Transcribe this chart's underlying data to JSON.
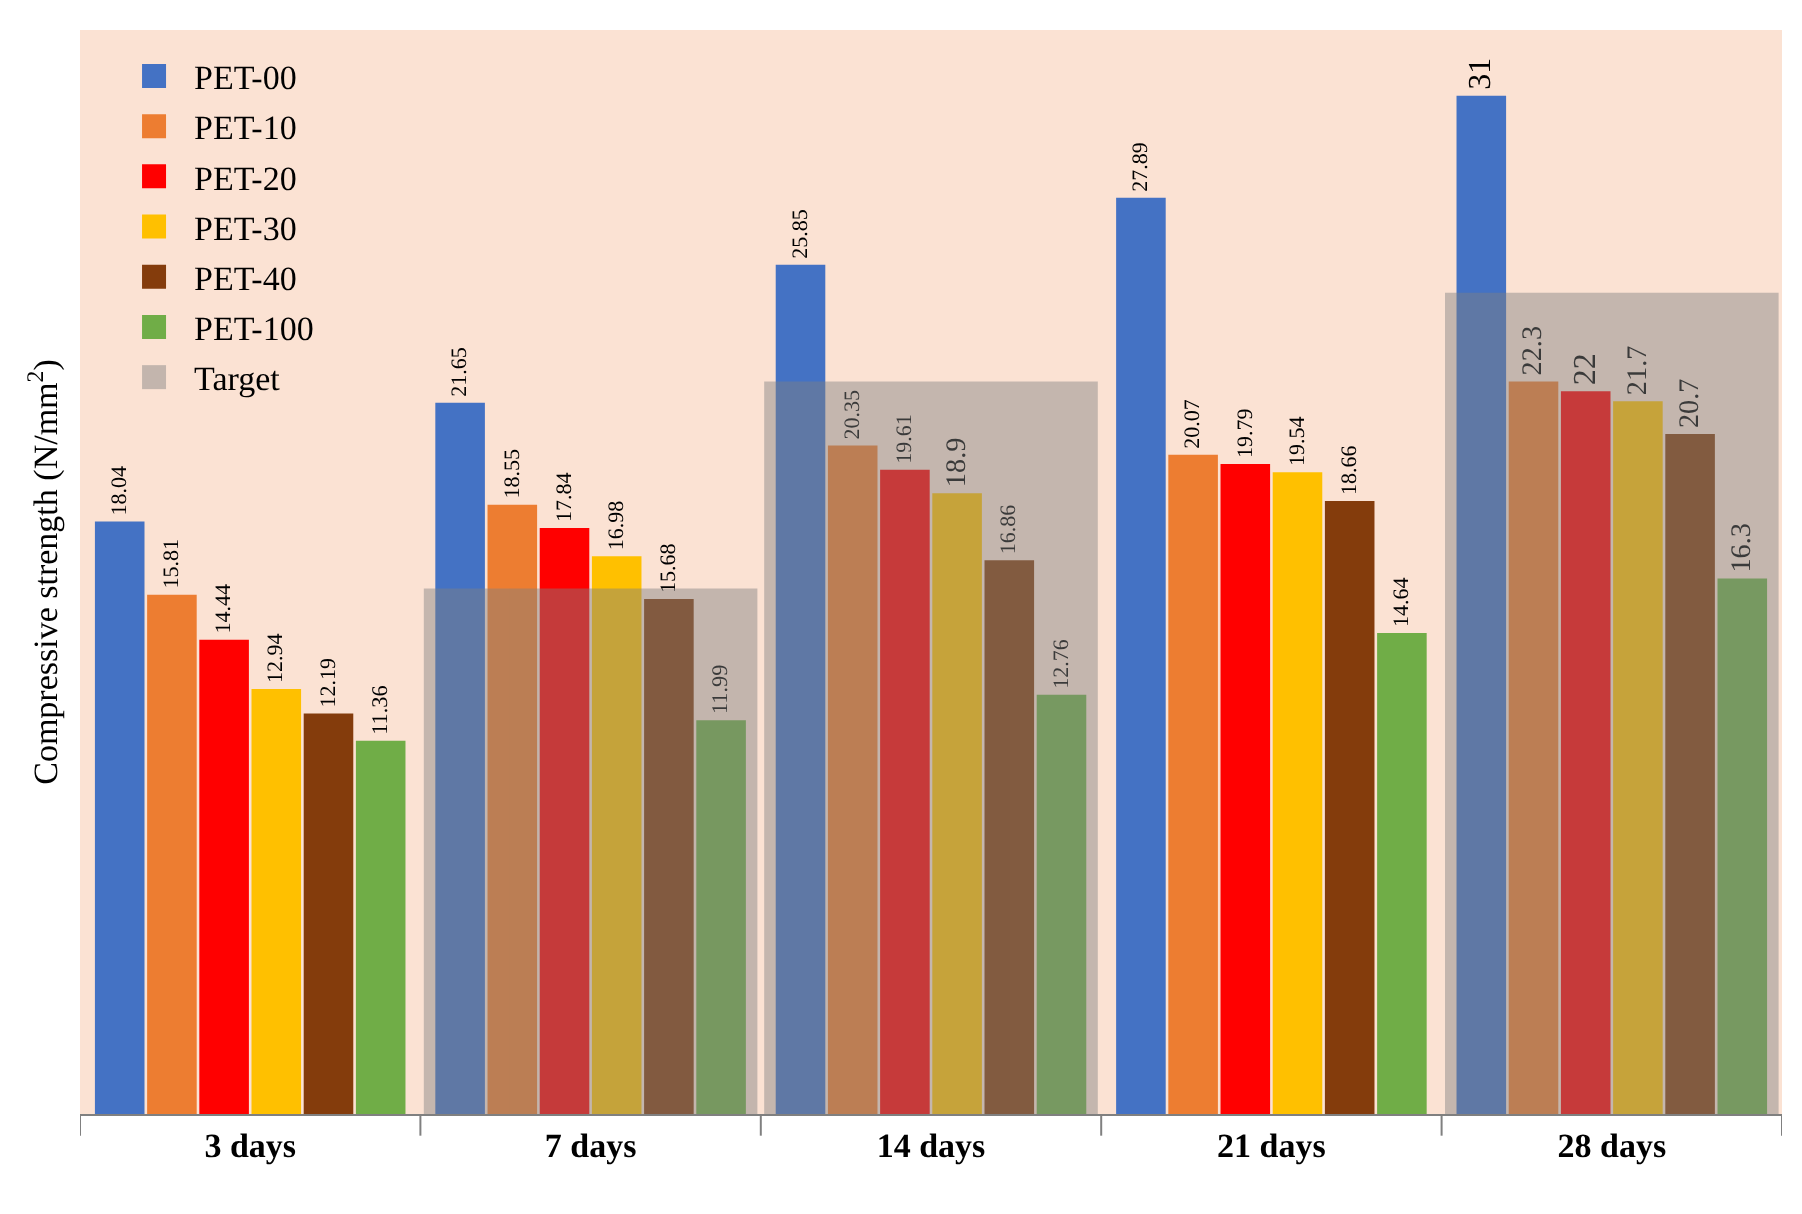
{
  "chart_data": {
    "type": "bar",
    "ylabel": "Compressive strength (N/mm$^{2}$)",
    "categories": [
      "3 days",
      "7 days",
      "14 days",
      "21 days",
      "28 days"
    ],
    "ylim": [
      0,
      33
    ],
    "legend": "top left",
    "series": [
      {
        "name": "PET-00",
        "color": "#4472c4",
        "values": [
          18.04,
          21.65,
          25.85,
          27.89,
          31
        ],
        "value_labels": [
          "18.04",
          "21.65",
          "25.85",
          "27.89",
          "31"
        ]
      },
      {
        "name": "PET-10",
        "color": "#ed7d31",
        "values": [
          15.81,
          18.55,
          20.35,
          20.07,
          22.3
        ],
        "value_labels": [
          "15.81",
          "18.55",
          "20.35",
          "20.07",
          "22.3"
        ]
      },
      {
        "name": "PET-20",
        "color": "#ff0000",
        "values": [
          14.44,
          17.84,
          19.61,
          19.79,
          22
        ],
        "value_labels": [
          "14.44",
          "17.84",
          "19.61",
          "19.79",
          "22"
        ]
      },
      {
        "name": "PET-30",
        "color": "#ffc000",
        "values": [
          12.94,
          16.98,
          18.9,
          19.54,
          21.7
        ],
        "value_labels": [
          "12.94",
          "16.98",
          "18.9",
          "19.54",
          "21.7"
        ]
      },
      {
        "name": "PET-40",
        "color": "#843c0c",
        "values": [
          12.19,
          15.68,
          16.86,
          18.66,
          20.7
        ],
        "value_labels": [
          "12.19",
          "15.68",
          "16.86",
          "18.66",
          "20.7"
        ]
      },
      {
        "name": "PET-100",
        "color": "#70ad47",
        "values": [
          11.36,
          11.99,
          12.76,
          14.64,
          16.3
        ],
        "value_labels": [
          "11.36",
          "11.99",
          "12.76",
          "14.64",
          "16.3"
        ]
      },
      {
        "name": "Target",
        "color": "#808080",
        "values": [
          null,
          16,
          22.3,
          null,
          25
        ]
      }
    ]
  }
}
